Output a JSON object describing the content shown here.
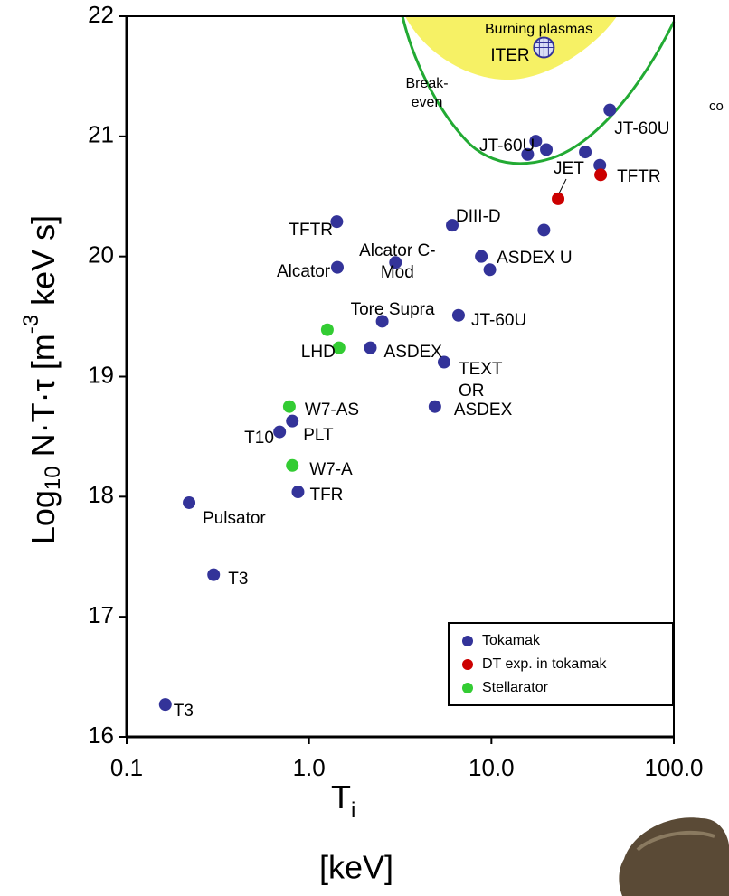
{
  "chart_data": {
    "type": "scatter",
    "xlabel": {
      "text": "T",
      "sub": "i",
      "unit": "[keV]"
    },
    "ylabel": {
      "text": "Log",
      "sub": "10",
      "mid": " N·T·τ  [m",
      "sup": "-3",
      "end": " keV s]"
    },
    "xlim": [
      0.1,
      100
    ],
    "xscale": "log",
    "xticks": [
      0.1,
      {
        "value": 1,
        "label": "1.0"
      },
      {
        "value": 10,
        "label": "10.0"
      },
      {
        "value": 100,
        "label": "100.0"
      }
    ],
    "ylim": [
      16,
      22
    ],
    "yticks": [
      16,
      17,
      18,
      19,
      20,
      21,
      22
    ],
    "legend": "lower right",
    "series": [
      {
        "name": "Tokamak",
        "color": "#333399",
        "x": [
          0.163,
          0.3,
          0.22,
          0.87,
          0.69,
          0.81,
          1.42,
          1.43,
          2.98,
          2.52,
          2.17,
          6.1,
          6.6,
          5.5,
          4.9,
          8.8,
          9.8,
          19.4,
          20.0,
          17.5,
          15.8,
          44.6,
          32.7,
          39.3
        ],
        "values": [
          16.27,
          17.35,
          17.95,
          18.04,
          18.54,
          18.63,
          20.29,
          19.91,
          19.95,
          19.46,
          19.24,
          20.26,
          19.51,
          19.12,
          18.75,
          20.0,
          19.89,
          20.22,
          20.89,
          20.96,
          20.85,
          21.22,
          20.87,
          20.76
        ],
        "labels": [
          "T3",
          "T3",
          "Pulsator",
          "TFR",
          "T10",
          "PLT",
          "TFTR",
          "Alcator",
          "Alcator C-\nMod",
          "Tore Supra",
          "ASDEX",
          "DIII-D",
          "JT-60U",
          "TEXT\nOR",
          "ASDEX",
          "ASDEX U",
          null,
          null,
          "JT-60U",
          null,
          null,
          "JT-60U",
          null,
          null
        ]
      },
      {
        "name": "DT exp. in tokamak",
        "color": "#cc0000",
        "x": [
          23.2,
          39.7
        ],
        "values": [
          20.48,
          20.68
        ],
        "labels": [
          "JET",
          "TFTR"
        ]
      },
      {
        "name": "Stellarator",
        "color": "#33cc33",
        "x": [
          1.26,
          1.46,
          0.78,
          0.81
        ],
        "values": [
          19.39,
          19.24,
          18.75,
          18.26
        ],
        "labels": [
          null,
          "LHD",
          "W7-AS",
          "W7-A"
        ]
      }
    ],
    "annotations": [
      {
        "text": "Burning plasmas"
      },
      {
        "text": "ITER",
        "x": 19.4,
        "y": 21.74
      },
      {
        "text": "Break-\neven"
      },
      {
        "text": "co"
      }
    ]
  }
}
